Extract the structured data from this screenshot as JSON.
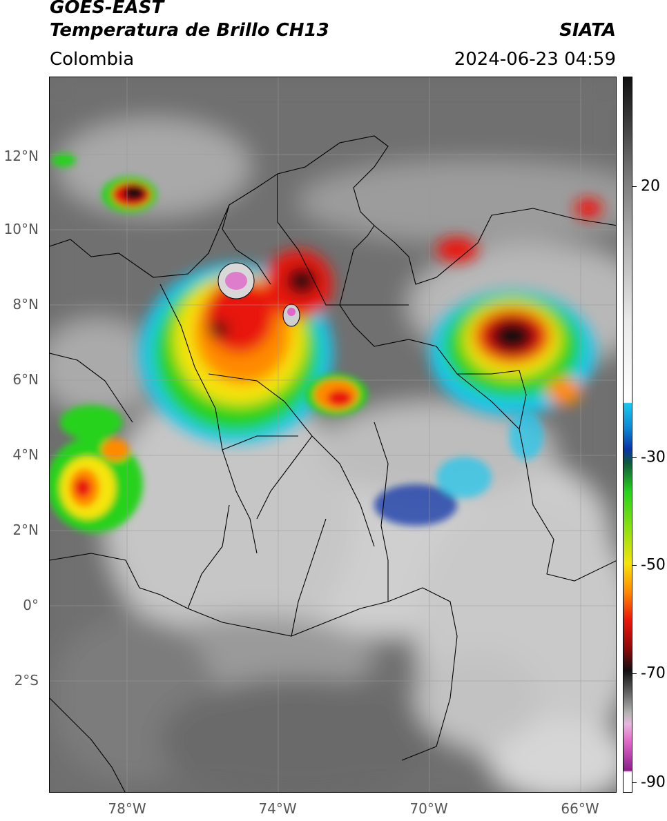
{
  "header": {
    "satellite": "GOES-EAST",
    "product": "Temperatura de Brillo CH13",
    "region": "Colombia",
    "agency": "SIATA",
    "datetime": "2024-06-23 04:59"
  },
  "map": {
    "lat_labels": [
      "12°N",
      "10°N",
      "8°N",
      "6°N",
      "4°N",
      "2°N",
      "0°",
      "2°S"
    ],
    "lon_labels": [
      "78°W",
      "74°W",
      "70°W",
      "66°W"
    ],
    "colors": {
      "cold_core": "#111111",
      "red": "#e8160c",
      "orange": "#ff8a00",
      "yellow": "#f5e40a",
      "green": "#27d21c",
      "blue": "#0a34a8",
      "cyan": "#18c8f0",
      "overshoot": "#e067c9"
    }
  },
  "colorbar": {
    "tick_labels": [
      "20",
      "-30",
      "-50",
      "-70",
      "-90"
    ]
  }
}
